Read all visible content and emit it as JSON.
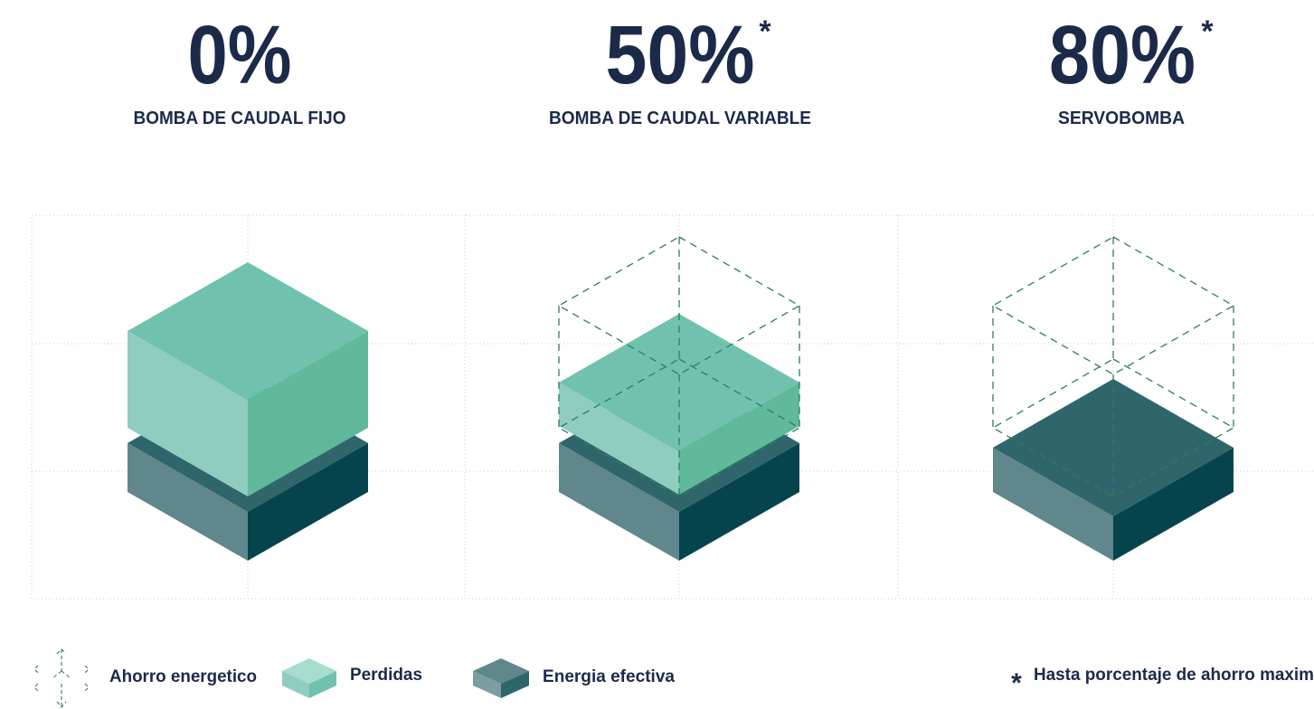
{
  "columns": [
    {
      "percent": "0%",
      "label": "BOMBA DE CAUDAL FIJO"
    },
    {
      "percent": "50%",
      "note_mark": "*",
      "label": "BOMBA DE CAUDAL VARIABLE"
    },
    {
      "percent": "80%",
      "note_mark": "*",
      "label": "SERVOBOMBA"
    }
  ],
  "legend": {
    "items": [
      "Ahorro energetico",
      "Perdidas",
      "Energia efectiva"
    ],
    "note_mark": "*",
    "note": "Hasta porcentaje de ahorro maxim"
  }
}
